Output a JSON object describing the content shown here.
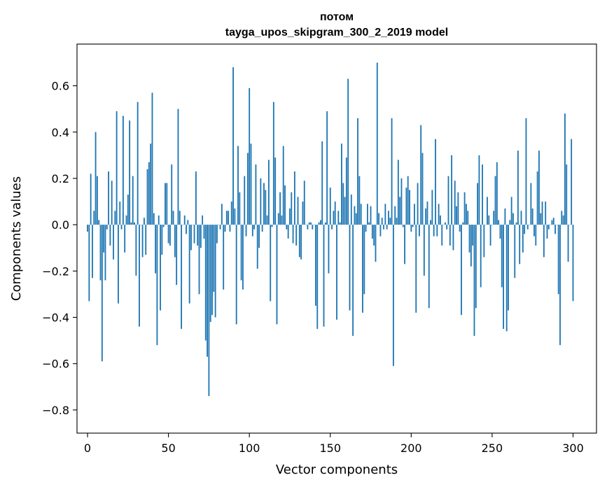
{
  "chart_data": {
    "type": "bar",
    "title": "потом",
    "subtitle": "tayga_upos_skipgram_300_2_2019 model",
    "xlabel": "Vector components",
    "ylabel": "Components values",
    "xlim": [
      -6.5,
      314.5
    ],
    "ylim": [
      -0.9,
      0.78
    ],
    "xticks": [
      0,
      50,
      100,
      150,
      200,
      250,
      300
    ],
    "yticks": [
      -0.8,
      -0.6,
      -0.4,
      -0.2,
      0.0,
      0.2,
      0.4,
      0.6
    ],
    "ytick_labels": [
      "−0.8",
      "−0.6",
      "−0.4",
      "−0.2",
      "0.0",
      "0.2",
      "0.4",
      "0.6"
    ],
    "bar_color": "#1f77b4",
    "grid": false,
    "values": [
      -0.03,
      -0.33,
      0.22,
      -0.23,
      0.06,
      0.4,
      0.21,
      0.02,
      -0.24,
      -0.59,
      -0.12,
      -0.24,
      -0.02,
      0.23,
      -0.09,
      0.19,
      -0.15,
      0.06,
      0.49,
      -0.34,
      0.1,
      -0.02,
      0.47,
      -0.12,
      0.04,
      0.13,
      0.45,
      0.01,
      0.21,
      0.01,
      -0.22,
      0.53,
      -0.44,
      0.0,
      -0.14,
      0.03,
      -0.13,
      0.24,
      0.27,
      0.35,
      0.57,
      0.05,
      -0.21,
      -0.52,
      0.04,
      -0.37,
      -0.13,
      -0.01,
      0.18,
      0.18,
      -0.08,
      -0.09,
      0.26,
      0.06,
      -0.14,
      -0.26,
      0.5,
      0.06,
      -0.45,
      0.0,
      0.04,
      -0.04,
      0.02,
      -0.34,
      -0.11,
      0.0,
      -0.08,
      0.23,
      -0.09,
      -0.3,
      -0.1,
      0.04,
      -0.06,
      -0.5,
      -0.57,
      -0.74,
      -0.42,
      -0.39,
      -0.29,
      -0.4,
      -0.08,
      0.0,
      -0.02,
      0.09,
      -0.28,
      -0.03,
      0.06,
      0.06,
      -0.03,
      0.1,
      0.68,
      0.07,
      -0.43,
      0.34,
      0.14,
      -0.24,
      -0.28,
      0.21,
      -0.05,
      0.31,
      0.59,
      0.35,
      -0.05,
      -0.02,
      0.26,
      -0.19,
      -0.1,
      0.2,
      -0.03,
      0.18,
      0.15,
      0.04,
      0.28,
      -0.33,
      -0.01,
      0.53,
      0.29,
      -0.43,
      0.05,
      0.14,
      0.04,
      0.34,
      0.17,
      -0.02,
      -0.06,
      0.07,
      0.14,
      -0.08,
      0.23,
      -0.09,
      0.12,
      -0.14,
      -0.15,
      0.1,
      0.19,
      0.0,
      -0.02,
      0.01,
      0.01,
      -0.02,
      0.0,
      -0.35,
      -0.45,
      0.01,
      0.02,
      0.36,
      -0.44,
      0.01,
      0.49,
      -0.21,
      0.16,
      -0.02,
      0.06,
      0.1,
      -0.41,
      0.06,
      0.01,
      0.35,
      0.18,
      0.12,
      0.29,
      0.63,
      -0.37,
      0.13,
      -0.48,
      0.08,
      0.05,
      0.46,
      0.21,
      0.09,
      -0.38,
      -0.3,
      -0.03,
      0.09,
      0.01,
      0.08,
      -0.06,
      -0.09,
      -0.16,
      0.7,
      0.05,
      -0.05,
      0.03,
      -0.02,
      0.09,
      -0.02,
      0.06,
      0.03,
      0.46,
      -0.61,
      0.08,
      0.03,
      0.28,
      0.12,
      0.2,
      -0.01,
      -0.17,
      0.16,
      0.21,
      0.15,
      -0.03,
      -0.01,
      0.09,
      -0.38,
      0.18,
      -0.05,
      0.43,
      0.31,
      -0.22,
      0.07,
      0.1,
      -0.36,
      0.02,
      0.15,
      -0.05,
      0.37,
      -0.05,
      0.09,
      0.04,
      -0.09,
      0.0,
      0.01,
      -0.02,
      0.21,
      -0.09,
      0.3,
      -0.11,
      0.19,
      0.08,
      0.14,
      -0.03,
      -0.39,
      0.01,
      0.14,
      0.09,
      0.06,
      -0.12,
      -0.18,
      -0.09,
      -0.48,
      -0.36,
      0.18,
      0.3,
      -0.27,
      0.26,
      -0.14,
      0.0,
      0.12,
      0.04,
      -0.09,
      0.0,
      0.06,
      0.21,
      0.27,
      0.02,
      -0.06,
      -0.27,
      -0.45,
      0.07,
      -0.46,
      -0.37,
      0.02,
      0.12,
      0.05,
      -0.23,
      0.01,
      0.32,
      -0.17,
      0.06,
      -0.12,
      -0.04,
      0.46,
      -0.02,
      0.0,
      0.18,
      0.07,
      -0.05,
      -0.09,
      0.23,
      0.32,
      0.05,
      0.1,
      -0.14,
      0.1,
      -0.06,
      -0.02,
      0.0,
      0.02,
      0.03,
      -0.04,
      0.0,
      -0.3,
      -0.52,
      0.06,
      0.04,
      0.48,
      0.26,
      -0.16,
      0.0,
      0.37,
      -0.33
    ]
  }
}
